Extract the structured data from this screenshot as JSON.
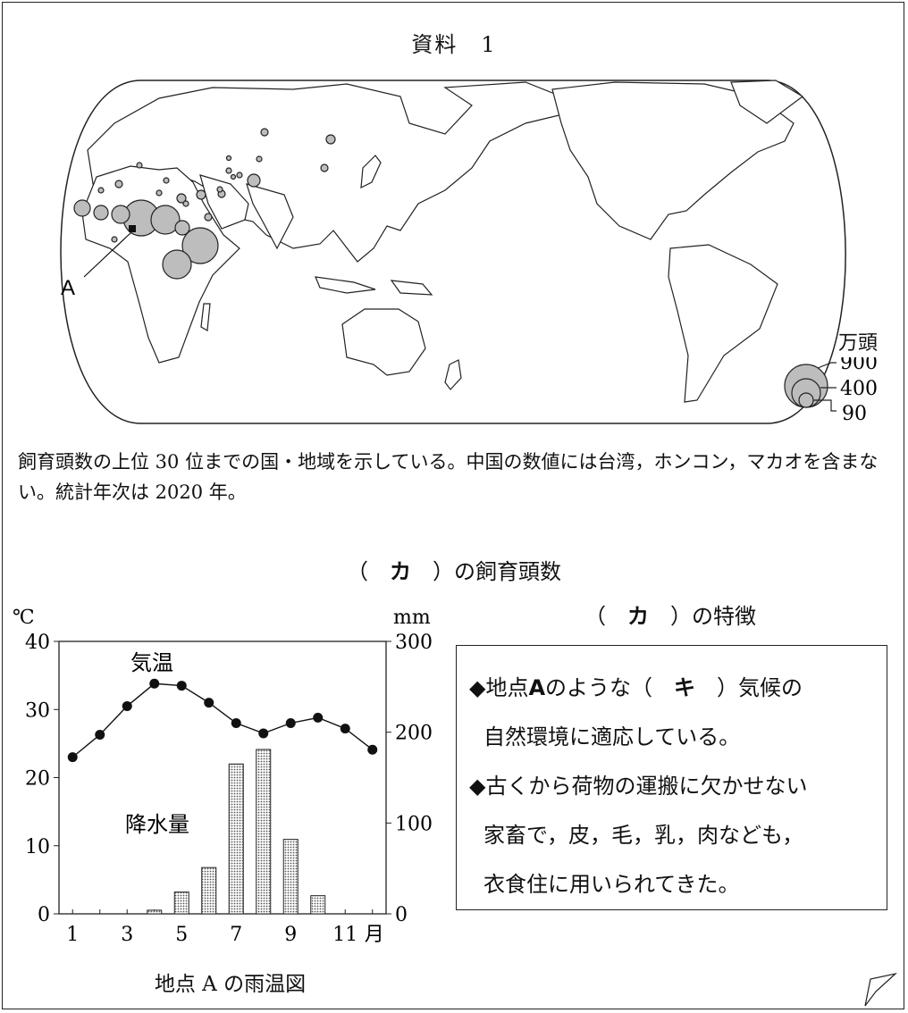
{
  "title": "資料　1",
  "map": {
    "point_label": "A",
    "legend_unit": "万頭",
    "legend_values": [
      "900",
      "400",
      "90"
    ]
  },
  "note": "飼育頭数の上位 30 位までの国・地域を示している。中国の数値には台湾，ホンコン，マカオを含まない。統計年次は 2020 年。",
  "figure_title": {
    "open": "（　",
    "blank": "カ",
    "close": "　）の飼育頭数"
  },
  "feature": {
    "title_open": "（　",
    "title_blank": "カ",
    "title_close": "　）の特徴",
    "line1_pre": "◆地点",
    "line1_point": "A",
    "line1_mid": "のような（　",
    "line1_blank": "キ",
    "line1_post": "　）気候の",
    "line2": "自然環境に適応している。",
    "line3": "◆古くから荷物の運搬に欠かせない",
    "line4": "家畜で，皮，毛，乳，肉なども，",
    "line5": "衣食住に用いられてきた。"
  },
  "chart_caption": "地点 A の雨温図",
  "chart_data": {
    "type": "bar+line",
    "x": [
      1,
      2,
      3,
      4,
      5,
      6,
      7,
      8,
      9,
      10,
      11,
      12
    ],
    "x_ticks": [
      "1",
      "3",
      "5",
      "7",
      "9",
      "11"
    ],
    "x_unit": "月",
    "left_axis": {
      "unit": "℃",
      "range": [
        0,
        40
      ],
      "ticks": [
        "0",
        "10",
        "20",
        "30",
        "40"
      ]
    },
    "right_axis": {
      "unit": "mm",
      "range": [
        0,
        300
      ],
      "ticks": [
        "0",
        "100",
        "200",
        "300"
      ]
    },
    "series": [
      {
        "name": "気温",
        "type": "line",
        "axis": "left",
        "values": [
          23,
          26.3,
          30.5,
          33.8,
          33.5,
          31,
          28,
          26.5,
          28,
          28.8,
          27.2,
          24.1
        ]
      },
      {
        "name": "降水量",
        "type": "bar",
        "axis": "right",
        "values": [
          0,
          0,
          0,
          4,
          24,
          51,
          165,
          181,
          82,
          20,
          0,
          0
        ]
      }
    ]
  }
}
